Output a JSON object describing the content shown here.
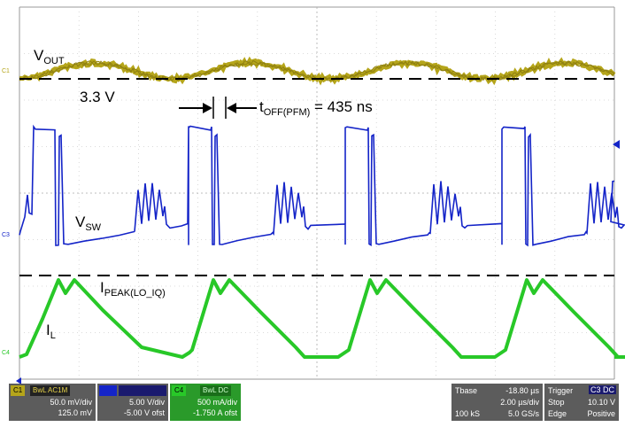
{
  "annotations": {
    "vout_main": "V",
    "vout_sub": "OUT",
    "vout_level": "3.3 V",
    "toff_main": "t",
    "toff_sub": "OFF(PFM)",
    "toff_rest": " = 435 ns",
    "vsw_main": "V",
    "vsw_sub": "SW",
    "ipeak_main": "I",
    "ipeak_sub": "PEAK(LO_IQ)",
    "il_main": "I",
    "il_sub": "L"
  },
  "channel_markers": {
    "c1": "C1",
    "c3": "C3",
    "c4": "C4"
  },
  "colors": {
    "ch1": "#b5a51a",
    "ch3": "#1424c8",
    "ch4": "#28c828",
    "grid": "#c8c8c8",
    "panel": "#5c5c5c"
  },
  "channels": [
    {
      "id": "C1",
      "tags": "BwL AC1M",
      "scale": "50.0 mV/div",
      "offset": "125.0 mV"
    },
    {
      "id": "C3",
      "tags": "",
      "scale": "5.00 V/div",
      "offset": "-5.00 V ofst"
    },
    {
      "id": "C4",
      "tags": "BwL DC",
      "scale": "500 mA/div",
      "offset": "-1.750 A ofst"
    }
  ],
  "timebase": {
    "label": "Tbase",
    "position": "-18.80 µs",
    "div": "2.00 µs/div",
    "samples": "100 kS",
    "rate": "5.0 GS/s"
  },
  "trigger": {
    "label": "Trigger",
    "source": "C3 DC",
    "mode": "Stop",
    "level": "10.10 V",
    "type": "Edge",
    "slope": "Positive"
  }
}
